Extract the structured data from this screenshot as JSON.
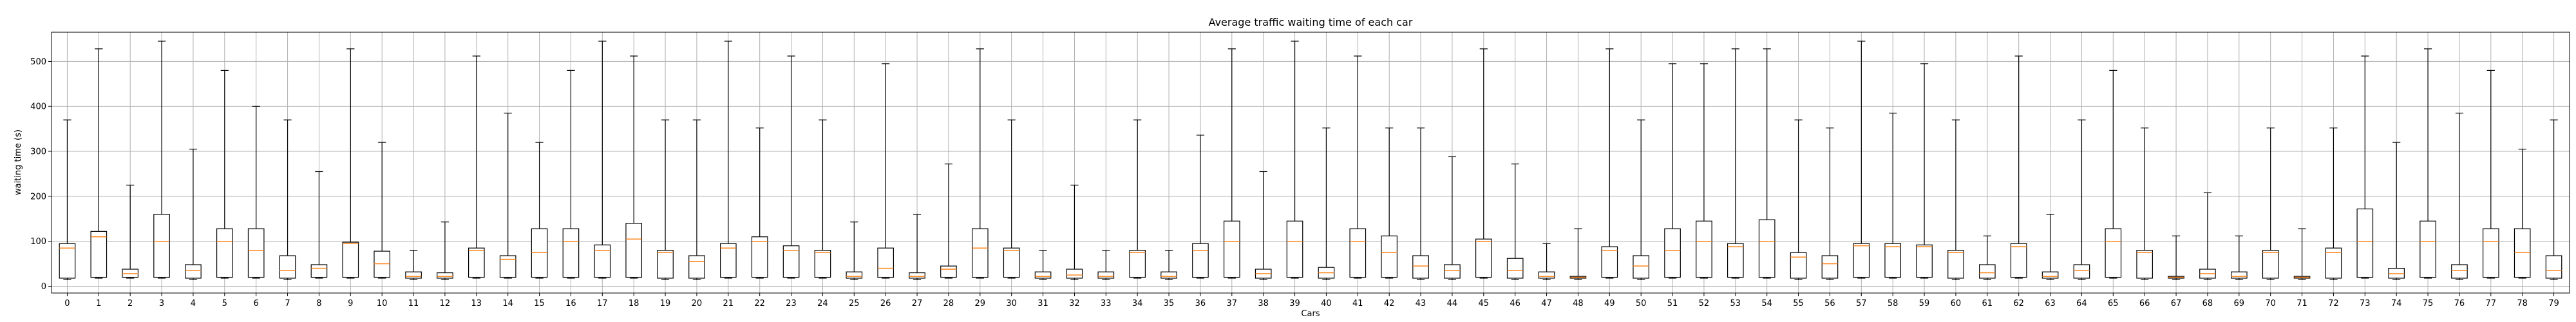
{
  "chart_data": {
    "type": "box",
    "title": "Average traffic waiting time of each car",
    "xlabel": "Cars",
    "ylabel": "waiting time (s)",
    "ylim": [
      -15,
      565
    ],
    "yticks": [
      0,
      100,
      200,
      300,
      400,
      500
    ],
    "grid": true,
    "colors": {
      "box": "#000000",
      "median": "#ff7f0e",
      "grid": "#b0b0b0"
    },
    "categories": [
      "0",
      "1",
      "2",
      "3",
      "4",
      "5",
      "6",
      "7",
      "8",
      "9",
      "10",
      "11",
      "12",
      "13",
      "14",
      "15",
      "16",
      "17",
      "18",
      "19",
      "20",
      "21",
      "22",
      "23",
      "24",
      "25",
      "26",
      "27",
      "28",
      "29",
      "30",
      "31",
      "32",
      "33",
      "34",
      "35",
      "36",
      "37",
      "38",
      "39",
      "40",
      "41",
      "42",
      "43",
      "44",
      "45",
      "46",
      "47",
      "48",
      "49",
      "50",
      "51",
      "52",
      "53",
      "54",
      "55",
      "56",
      "57",
      "58",
      "59",
      "60",
      "61",
      "62",
      "63",
      "64",
      "65",
      "66",
      "67",
      "68",
      "69",
      "70",
      "71",
      "72",
      "73",
      "74",
      "75",
      "76",
      "77",
      "78",
      "79"
    ],
    "boxes": [
      {
        "min": 15,
        "q1": 18,
        "median": 85,
        "q3": 95,
        "max": 370
      },
      {
        "min": 18,
        "q1": 20,
        "median": 110,
        "q3": 122,
        "max": 528
      },
      {
        "min": 18,
        "q1": 20,
        "median": 28,
        "q3": 38,
        "max": 225
      },
      {
        "min": 18,
        "q1": 20,
        "median": 100,
        "q3": 160,
        "max": 545
      },
      {
        "min": 15,
        "q1": 18,
        "median": 35,
        "q3": 48,
        "max": 305
      },
      {
        "min": 18,
        "q1": 20,
        "median": 100,
        "q3": 128,
        "max": 480
      },
      {
        "min": 18,
        "q1": 20,
        "median": 80,
        "q3": 128,
        "max": 400
      },
      {
        "min": 15,
        "q1": 18,
        "median": 35,
        "q3": 68,
        "max": 370
      },
      {
        "min": 18,
        "q1": 20,
        "median": 40,
        "q3": 48,
        "max": 255
      },
      {
        "min": 18,
        "q1": 20,
        "median": 95,
        "q3": 98,
        "max": 528
      },
      {
        "min": 18,
        "q1": 20,
        "median": 50,
        "q3": 78,
        "max": 320
      },
      {
        "min": 15,
        "q1": 18,
        "median": 22,
        "q3": 32,
        "max": 80
      },
      {
        "min": 15,
        "q1": 18,
        "median": 22,
        "q3": 30,
        "max": 143
      },
      {
        "min": 18,
        "q1": 20,
        "median": 80,
        "q3": 85,
        "max": 512
      },
      {
        "min": 18,
        "q1": 20,
        "median": 60,
        "q3": 68,
        "max": 385
      },
      {
        "min": 18,
        "q1": 20,
        "median": 75,
        "q3": 128,
        "max": 320
      },
      {
        "min": 18,
        "q1": 20,
        "median": 100,
        "q3": 128,
        "max": 480
      },
      {
        "min": 18,
        "q1": 20,
        "median": 80,
        "q3": 92,
        "max": 545
      },
      {
        "min": 18,
        "q1": 20,
        "median": 105,
        "q3": 140,
        "max": 512
      },
      {
        "min": 15,
        "q1": 18,
        "median": 75,
        "q3": 80,
        "max": 370
      },
      {
        "min": 15,
        "q1": 18,
        "median": 55,
        "q3": 68,
        "max": 370
      },
      {
        "min": 18,
        "q1": 20,
        "median": 85,
        "q3": 95,
        "max": 545
      },
      {
        "min": 18,
        "q1": 20,
        "median": 100,
        "q3": 110,
        "max": 352
      },
      {
        "min": 18,
        "q1": 20,
        "median": 80,
        "q3": 90,
        "max": 512
      },
      {
        "min": 18,
        "q1": 20,
        "median": 75,
        "q3": 80,
        "max": 370
      },
      {
        "min": 15,
        "q1": 18,
        "median": 22,
        "q3": 32,
        "max": 143
      },
      {
        "min": 18,
        "q1": 20,
        "median": 40,
        "q3": 85,
        "max": 495
      },
      {
        "min": 15,
        "q1": 18,
        "median": 22,
        "q3": 30,
        "max": 160
      },
      {
        "min": 18,
        "q1": 20,
        "median": 38,
        "q3": 45,
        "max": 272
      },
      {
        "min": 18,
        "q1": 20,
        "median": 85,
        "q3": 128,
        "max": 528
      },
      {
        "min": 18,
        "q1": 20,
        "median": 80,
        "q3": 85,
        "max": 370
      },
      {
        "min": 15,
        "q1": 18,
        "median": 22,
        "q3": 32,
        "max": 80
      },
      {
        "min": 15,
        "q1": 18,
        "median": 25,
        "q3": 38,
        "max": 225
      },
      {
        "min": 15,
        "q1": 18,
        "median": 22,
        "q3": 32,
        "max": 80
      },
      {
        "min": 18,
        "q1": 20,
        "median": 75,
        "q3": 80,
        "max": 370
      },
      {
        "min": 15,
        "q1": 18,
        "median": 22,
        "q3": 32,
        "max": 80
      },
      {
        "min": 18,
        "q1": 20,
        "median": 80,
        "q3": 95,
        "max": 336
      },
      {
        "min": 18,
        "q1": 20,
        "median": 100,
        "q3": 145,
        "max": 528
      },
      {
        "min": 15,
        "q1": 18,
        "median": 28,
        "q3": 38,
        "max": 255
      },
      {
        "min": 18,
        "q1": 20,
        "median": 100,
        "q3": 145,
        "max": 545
      },
      {
        "min": 15,
        "q1": 18,
        "median": 30,
        "q3": 42,
        "max": 352
      },
      {
        "min": 18,
        "q1": 20,
        "median": 100,
        "q3": 128,
        "max": 512
      },
      {
        "min": 18,
        "q1": 20,
        "median": 75,
        "q3": 112,
        "max": 352
      },
      {
        "min": 15,
        "q1": 18,
        "median": 45,
        "q3": 68,
        "max": 352
      },
      {
        "min": 15,
        "q1": 18,
        "median": 35,
        "q3": 48,
        "max": 288
      },
      {
        "min": 18,
        "q1": 20,
        "median": 100,
        "q3": 105,
        "max": 528
      },
      {
        "min": 15,
        "q1": 18,
        "median": 35,
        "q3": 62,
        "max": 272
      },
      {
        "min": 15,
        "q1": 18,
        "median": 22,
        "q3": 32,
        "max": 95
      },
      {
        "min": 15,
        "q1": 18,
        "median": 20,
        "q3": 22,
        "max": 128
      },
      {
        "min": 18,
        "q1": 20,
        "median": 80,
        "q3": 88,
        "max": 528
      },
      {
        "min": 15,
        "q1": 18,
        "median": 45,
        "q3": 68,
        "max": 370
      },
      {
        "min": 18,
        "q1": 20,
        "median": 80,
        "q3": 128,
        "max": 495
      },
      {
        "min": 18,
        "q1": 20,
        "median": 100,
        "q3": 145,
        "max": 495
      },
      {
        "min": 18,
        "q1": 20,
        "median": 88,
        "q3": 95,
        "max": 528
      },
      {
        "min": 18,
        "q1": 20,
        "median": 100,
        "q3": 148,
        "max": 528
      },
      {
        "min": 15,
        "q1": 18,
        "median": 65,
        "q3": 75,
        "max": 370
      },
      {
        "min": 15,
        "q1": 18,
        "median": 50,
        "q3": 68,
        "max": 352
      },
      {
        "min": 18,
        "q1": 20,
        "median": 90,
        "q3": 95,
        "max": 545
      },
      {
        "min": 18,
        "q1": 20,
        "median": 88,
        "q3": 95,
        "max": 385
      },
      {
        "min": 18,
        "q1": 20,
        "median": 88,
        "q3": 92,
        "max": 495
      },
      {
        "min": 15,
        "q1": 18,
        "median": 75,
        "q3": 80,
        "max": 370
      },
      {
        "min": 15,
        "q1": 18,
        "median": 30,
        "q3": 48,
        "max": 112
      },
      {
        "min": 18,
        "q1": 20,
        "median": 88,
        "q3": 95,
        "max": 512
      },
      {
        "min": 15,
        "q1": 18,
        "median": 22,
        "q3": 32,
        "max": 160
      },
      {
        "min": 15,
        "q1": 18,
        "median": 35,
        "q3": 48,
        "max": 370
      },
      {
        "min": 18,
        "q1": 20,
        "median": 100,
        "q3": 128,
        "max": 480
      },
      {
        "min": 15,
        "q1": 18,
        "median": 75,
        "q3": 80,
        "max": 352
      },
      {
        "min": 15,
        "q1": 18,
        "median": 20,
        "q3": 22,
        "max": 112
      },
      {
        "min": 15,
        "q1": 18,
        "median": 28,
        "q3": 38,
        "max": 208
      },
      {
        "min": 15,
        "q1": 18,
        "median": 22,
        "q3": 32,
        "max": 112
      },
      {
        "min": 15,
        "q1": 18,
        "median": 75,
        "q3": 80,
        "max": 352
      },
      {
        "min": 15,
        "q1": 18,
        "median": 20,
        "q3": 22,
        "max": 128
      },
      {
        "min": 15,
        "q1": 18,
        "median": 75,
        "q3": 85,
        "max": 352
      },
      {
        "min": 18,
        "q1": 20,
        "median": 100,
        "q3": 172,
        "max": 512
      },
      {
        "min": 15,
        "q1": 18,
        "median": 28,
        "q3": 40,
        "max": 320
      },
      {
        "min": 18,
        "q1": 20,
        "median": 100,
        "q3": 145,
        "max": 528
      },
      {
        "min": 15,
        "q1": 18,
        "median": 35,
        "q3": 48,
        "max": 385
      },
      {
        "min": 18,
        "q1": 20,
        "median": 100,
        "q3": 128,
        "max": 480
      },
      {
        "min": 18,
        "q1": 20,
        "median": 75,
        "q3": 128,
        "max": 305
      },
      {
        "min": 15,
        "q1": 18,
        "median": 35,
        "q3": 68,
        "max": 370
      }
    ]
  }
}
